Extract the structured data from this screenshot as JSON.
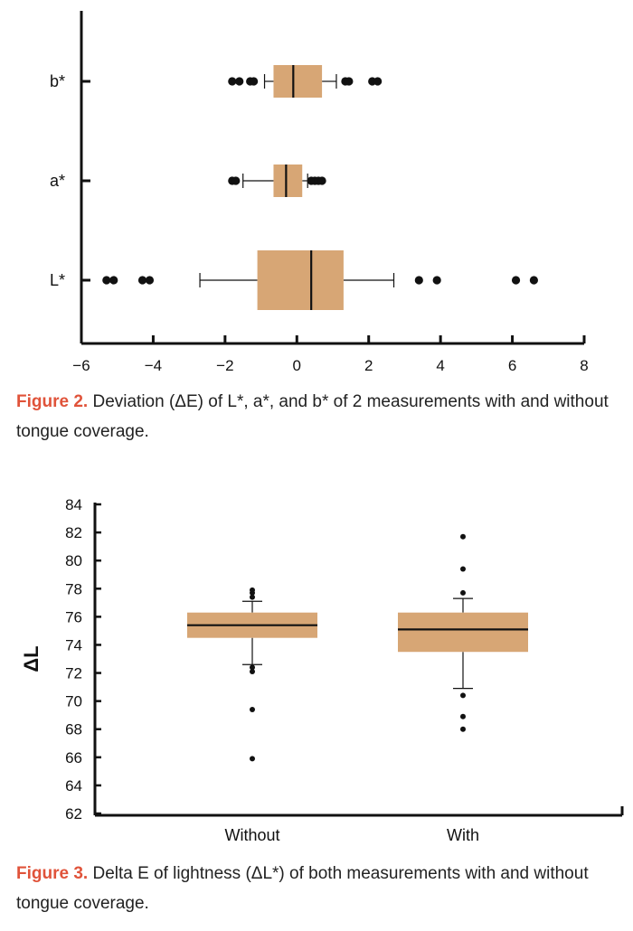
{
  "captions": {
    "fig2": {
      "label": "Figure 2.",
      "text": " Deviation (ΔE) of L*, a*, and b* of 2 measurements with and without tongue coverage."
    },
    "fig3": {
      "label": "Figure 3.",
      "text": " Delta E of lightness (ΔL*) of both measurements with and without tongue coverage."
    }
  },
  "colors": {
    "box_fill": "#d7a675",
    "ink": "#111111",
    "caption_label": "#e0533a"
  },
  "chart_data": [
    {
      "type": "boxplot",
      "orientation": "horizontal",
      "xlim": [
        -6,
        8
      ],
      "xticks": [
        -6,
        -4,
        -2,
        0,
        2,
        4,
        6,
        8
      ],
      "categories": [
        "L*",
        "a*",
        "b*"
      ],
      "series": [
        {
          "category": "L*",
          "whisker_low": -2.7,
          "q1": -1.1,
          "median": 0.4,
          "q3": 1.3,
          "whisker_high": 2.7,
          "outliers": [
            -5.3,
            -5.1,
            -4.3,
            -4.1,
            3.4,
            3.9,
            6.1,
            6.6
          ]
        },
        {
          "category": "a*",
          "whisker_low": -1.5,
          "q1": -0.65,
          "median": -0.3,
          "q3": 0.15,
          "whisker_high": 0.3,
          "outliers": [
            -1.8,
            -1.7,
            0.4,
            0.5,
            0.6,
            0.7
          ]
        },
        {
          "category": "b*",
          "whisker_low": -0.9,
          "q1": -0.65,
          "median": -0.1,
          "q3": 0.7,
          "whisker_high": 1.1,
          "outliers": [
            -1.8,
            -1.6,
            -1.3,
            -1.2,
            1.35,
            1.45,
            2.1,
            2.25
          ]
        }
      ]
    },
    {
      "type": "boxplot",
      "orientation": "vertical",
      "ylabel": "ΔL",
      "ylim": [
        62,
        84
      ],
      "yticks": [
        62,
        64,
        66,
        68,
        70,
        72,
        74,
        76,
        78,
        80,
        82,
        84
      ],
      "categories": [
        "Without",
        "With"
      ],
      "series": [
        {
          "category": "Without",
          "whisker_low": 72.6,
          "q1": 74.5,
          "median": 75.4,
          "q3": 76.3,
          "whisker_high": 77.1,
          "outliers": [
            72.1,
            72.4,
            69.4,
            65.9,
            77.4,
            77.7,
            77.9
          ]
        },
        {
          "category": "With",
          "whisker_low": 70.9,
          "q1": 73.5,
          "median": 75.1,
          "q3": 76.3,
          "whisker_high": 77.3,
          "outliers": [
            70.4,
            68.9,
            68.0,
            77.7,
            79.4,
            81.7
          ]
        }
      ]
    }
  ]
}
